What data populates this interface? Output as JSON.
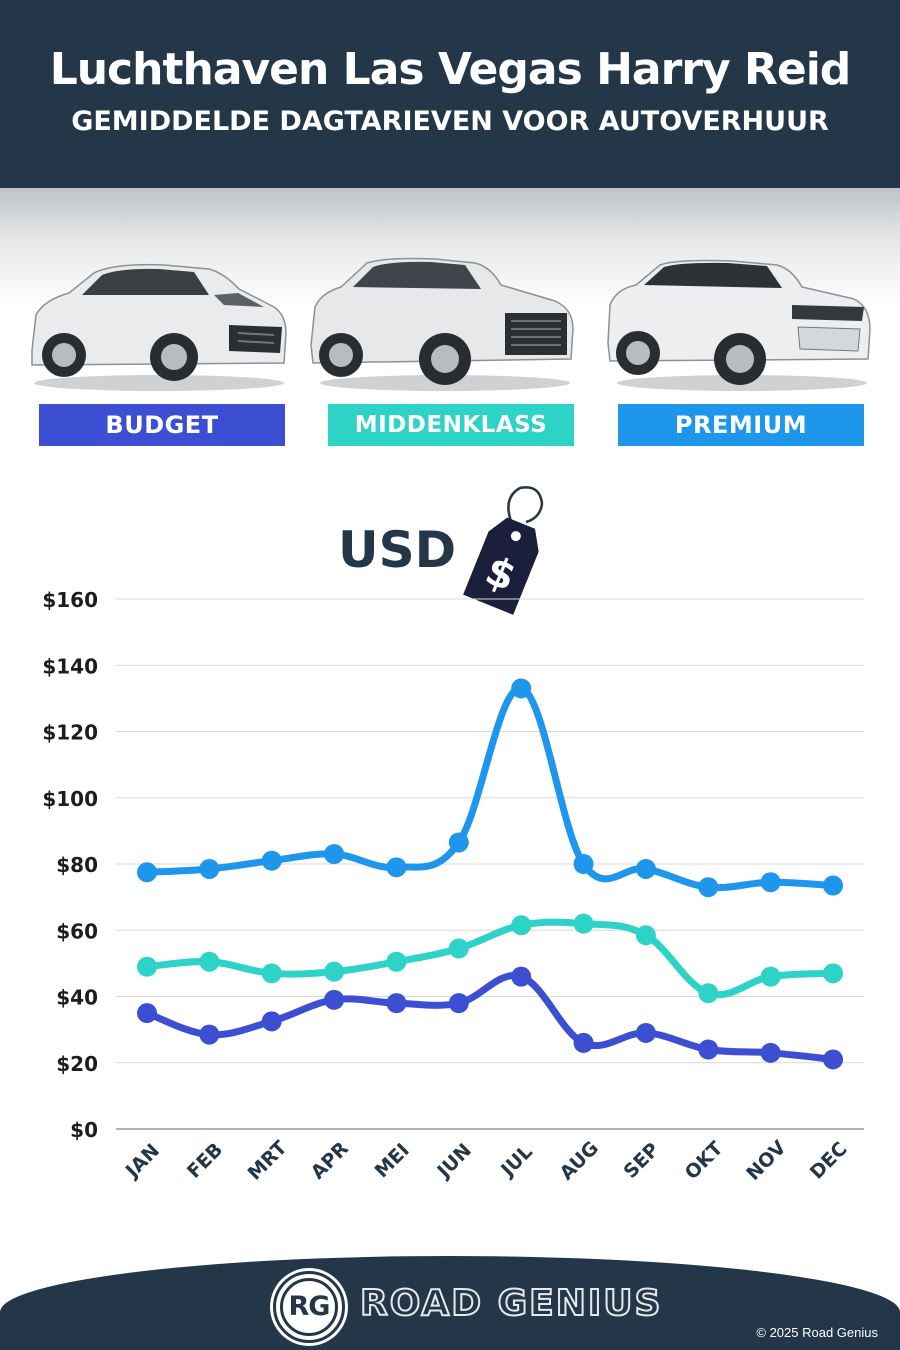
{
  "header": {
    "title": "Luchthaven Las Vegas Harry Reid",
    "subtitle": "GEMIDDELDE DAGTARIEVEN VOOR AUTOVERHUUR"
  },
  "categories": [
    {
      "label": "BUDGET",
      "color": "#3c4fd3",
      "icon": "hatchback-car-image"
    },
    {
      "label": "MIDDENKLASS",
      "color": "#2ed3c7",
      "icon": "suv-car-image"
    },
    {
      "label": "PREMIUM",
      "color": "#1e96ec",
      "icon": "luxury-suv-car-image"
    }
  ],
  "unit_label": "USD",
  "unit_icon": "dollar-price-tag-icon",
  "chart_data": {
    "type": "line",
    "title": "",
    "xlabel": "",
    "ylabel": "",
    "categories": [
      "JAN",
      "FEB",
      "MRT",
      "APR",
      "MEI",
      "JUN",
      "JUL",
      "AUG",
      "SEP",
      "OKT",
      "NOV",
      "DEC"
    ],
    "y_ticks": [
      "$0",
      "$20",
      "$40",
      "$60",
      "$80",
      "$100",
      "$120",
      "$140",
      "$160"
    ],
    "ylim": [
      0,
      160
    ],
    "grid": true,
    "series": [
      {
        "name": "BUDGET",
        "color": "#3c4fd3",
        "values": [
          35,
          28.5,
          32.5,
          39,
          38,
          38,
          46,
          26,
          29,
          24,
          23,
          21
        ]
      },
      {
        "name": "MIDDENKLASS",
        "color": "#2ed3c7",
        "values": [
          49,
          50.5,
          47,
          47.5,
          50.5,
          54.5,
          61.5,
          62,
          58.5,
          41,
          46,
          47
        ]
      },
      {
        "name": "PREMIUM",
        "color": "#1e96ec",
        "values": [
          77.5,
          78.5,
          81,
          83,
          79,
          86.5,
          133,
          80,
          78.5,
          73,
          74.5,
          73.5
        ]
      }
    ]
  },
  "footer": {
    "logo_text": "RG",
    "brand": "ROAD GENIUS",
    "copyright": "© 2025 Road Genius"
  }
}
